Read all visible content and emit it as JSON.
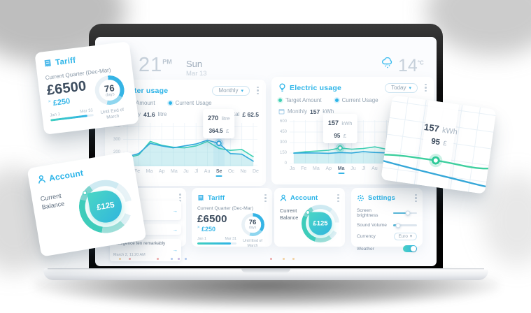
{
  "statusbar": {
    "time": "21",
    "meridiem": "PM",
    "day": "Sun",
    "date": "Mar 13",
    "temp": "14",
    "temp_unit": "°C"
  },
  "icons": {
    "caret": "▾",
    "arrow": "→"
  },
  "water_card": {
    "title": "Water usage",
    "range_selector": "Monthly",
    "legend_target": "Target Amount",
    "legend_current": "Current Usage",
    "period_label": "Monthly",
    "period_value": "41.6",
    "period_unit": "litre",
    "total_label": "Total",
    "total_value": "£ 62.5",
    "chart_data": {
      "type": "line",
      "x": [
        "Ja",
        "Fe",
        "Ma",
        "Ap",
        "Ma",
        "Ju",
        "Jl",
        "Au",
        "Se",
        "Oc",
        "No",
        "De"
      ],
      "ylim": [
        90,
        430
      ],
      "y_ticks": [
        400,
        300,
        200,
        100
      ],
      "selected_index": 8,
      "marker_series": 1,
      "series": [
        {
          "name": "Target Amount",
          "color": "#3ed0b4",
          "values": [
            155,
            180,
            285,
            255,
            240,
            235,
            250,
            285,
            230,
            215,
            222,
            165
          ]
        },
        {
          "name": "Current Usage",
          "color": "#2fa9dc",
          "values": [
            165,
            190,
            270,
            250,
            235,
            250,
            265,
            295,
            270,
            190,
            185,
            130
          ]
        }
      ],
      "tooltip": {
        "value": "270",
        "unit": "litre",
        "price": "364.5",
        "currency": "£"
      }
    }
  },
  "electric_card": {
    "title": "Electric usage",
    "range_selector": "Today",
    "legend_target": "Target Amount",
    "legend_current": "Current Usage",
    "period_label": "Monthly",
    "period_value": "157",
    "period_unit": "kWh",
    "chart_data": {
      "type": "line",
      "x": [
        "Ja",
        "Fe",
        "Ma",
        "Ap",
        "Ma",
        "Ju",
        "Jl",
        "Au",
        "Se",
        "Oc",
        "No",
        "De"
      ],
      "ylim": [
        0,
        620
      ],
      "y_ticks": [
        600,
        450,
        300,
        150,
        0
      ],
      "selected_index": 4,
      "marker_series": 0,
      "series": [
        {
          "name": "Target Amount",
          "color": "#3ed0b4",
          "values": [
            150,
            168,
            178,
            190,
            222,
            205,
            215,
            238,
            205,
            195,
            205,
            190
          ]
        },
        {
          "name": "Current Usage",
          "color": "#2fa9dc",
          "values": [
            148,
            152,
            150,
            146,
            157,
            150,
            170,
            158,
            152,
            148,
            158,
            150
          ]
        }
      ],
      "tooltip": {
        "value": "157",
        "unit": "kWh",
        "price": "95",
        "currency": "£"
      }
    }
  },
  "notifications_card": {
    "rows": [
      {
        "text": "se solicitude"
      },
      {
        "text": "change man"
      },
      {
        "text": "Indulgence ten remarkably",
        "time": "March 2, 11:20 AM"
      }
    ]
  },
  "tariff_card": {
    "title": "Tariff",
    "quarter": "Current Quarter (Dec-Mar)",
    "amount": "£6500",
    "saving_prefix": "×",
    "saving": "£250",
    "range_start": "Jan 1",
    "range_end": "Mar 31",
    "days": "76",
    "days_unit": "days",
    "until": "Until End of March"
  },
  "account_card": {
    "title": "Account",
    "balance_label_1": "Current",
    "balance_label_2": "Balance",
    "balance": "£125"
  },
  "settings_card": {
    "title": "Settings",
    "rows": [
      {
        "label": "Screen brightness",
        "type": "slider",
        "value_pct": 62
      },
      {
        "label": "Sound Volume",
        "type": "slider",
        "value_pct": 22
      },
      {
        "label": "Currency",
        "type": "dropdown",
        "value": "Euro"
      },
      {
        "label": "Weather",
        "type": "toggle",
        "value": "on"
      }
    ]
  },
  "float_chart": {
    "value": "157",
    "unit": "kWh",
    "price": "95",
    "currency": "£"
  },
  "colors": {
    "accent_blue": "#2cb4e8",
    "accent_teal": "#3ed0b4",
    "dark_text": "#3d4d5f"
  },
  "dock": {
    "dots": [
      {
        "c": "#e8a33d",
        "x": 34
      },
      {
        "c": "#d9534f",
        "x": 48
      },
      {
        "c": "#d9534f",
        "x": 88
      },
      {
        "c": "#5b8dd9",
        "x": 108
      },
      {
        "c": "#8e6bc1",
        "x": 118
      },
      {
        "c": "#5b8dd9",
        "x": 128
      },
      {
        "c": "#d9534f",
        "x": 250
      },
      {
        "c": "#e8a33d",
        "x": 268
      },
      {
        "c": "#e8a33d",
        "x": 282
      }
    ]
  }
}
